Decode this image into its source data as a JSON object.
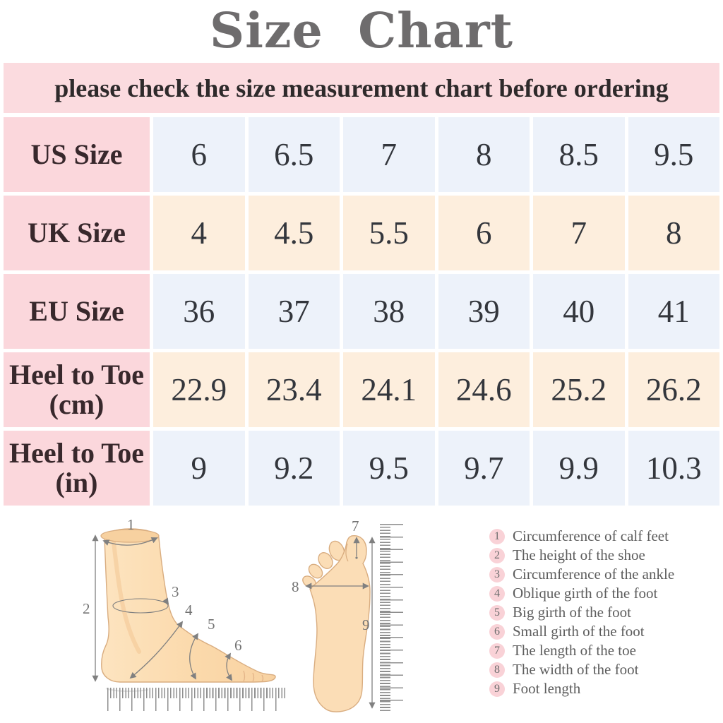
{
  "title": "Size  Chart",
  "banner": "please check the size measurement chart before ordering",
  "table": {
    "rows": [
      {
        "label": "US Size",
        "tint": "blue",
        "values": [
          "6",
          "6.5",
          "7",
          "8",
          "8.5",
          "9.5"
        ]
      },
      {
        "label": "UK Size",
        "tint": "peach",
        "values": [
          "4",
          "4.5",
          "5.5",
          "6",
          "7",
          "8"
        ]
      },
      {
        "label": "EU Size",
        "tint": "blue",
        "values": [
          "36",
          "37",
          "38",
          "39",
          "40",
          "41"
        ]
      },
      {
        "label": "Heel to Toe\n(cm)",
        "tint": "peach",
        "values": [
          "22.9",
          "23.4",
          "24.1",
          "24.6",
          "25.2",
          "26.2"
        ]
      },
      {
        "label": "Heel to Toe\n(in)",
        "tint": "blue",
        "values": [
          "9",
          "9.2",
          "9.5",
          "9.7",
          "9.9",
          "10.3"
        ]
      }
    ]
  },
  "chart_data": {
    "type": "table",
    "title": "Size Chart",
    "note": "please check the size measurement chart before ordering",
    "row_headers": [
      "US Size",
      "UK Size",
      "EU Size",
      "Heel to Toe (cm)",
      "Heel to Toe (in)"
    ],
    "series": [
      {
        "name": "US Size",
        "values": [
          6,
          6.5,
          7,
          8,
          8.5,
          9.5
        ]
      },
      {
        "name": "UK Size",
        "values": [
          4,
          4.5,
          5.5,
          6,
          7,
          8
        ]
      },
      {
        "name": "EU Size",
        "values": [
          36,
          37,
          38,
          39,
          40,
          41
        ]
      },
      {
        "name": "Heel to Toe (cm)",
        "values": [
          22.9,
          23.4,
          24.1,
          24.6,
          25.2,
          26.2
        ]
      },
      {
        "name": "Heel to Toe (in)",
        "values": [
          9,
          9.2,
          9.5,
          9.7,
          9.9,
          10.3
        ]
      }
    ]
  },
  "diagram": {
    "side_labels": [
      "1",
      "2",
      "3",
      "4",
      "5",
      "6"
    ],
    "top_labels": [
      "7",
      "8",
      "9"
    ]
  },
  "legend": {
    "items": [
      {
        "num": "1",
        "label": "Circumference of calf feet"
      },
      {
        "num": "2",
        "label": "The height of the shoe"
      },
      {
        "num": "3",
        "label": "Circumference of the ankle"
      },
      {
        "num": "4",
        "label": "Oblique girth of the foot"
      },
      {
        "num": "5",
        "label": "Big girth of the foot"
      },
      {
        "num": "6",
        "label": "Small girth of the foot"
      },
      {
        "num": "7",
        "label": "The length of the toe"
      },
      {
        "num": "8",
        "label": "The width of the foot"
      },
      {
        "num": "9",
        "label": "Foot length"
      }
    ]
  },
  "colors": {
    "banner_pink": "#fbdbdf",
    "label_pink": "#fbd7dc",
    "cell_blue": "#edf2fa",
    "cell_peach": "#fdeedd",
    "title_gray": "#6e6c6d",
    "text_dark": "#33363c",
    "legend_circle_pink": "#f9d2d7",
    "legend_text_gray": "#5d5d5d",
    "skin": "#fbdcb2",
    "skin_outline": "#d9ad80",
    "measure_line_gray": "#808080",
    "ruler_gray": "#8f8f8f"
  }
}
